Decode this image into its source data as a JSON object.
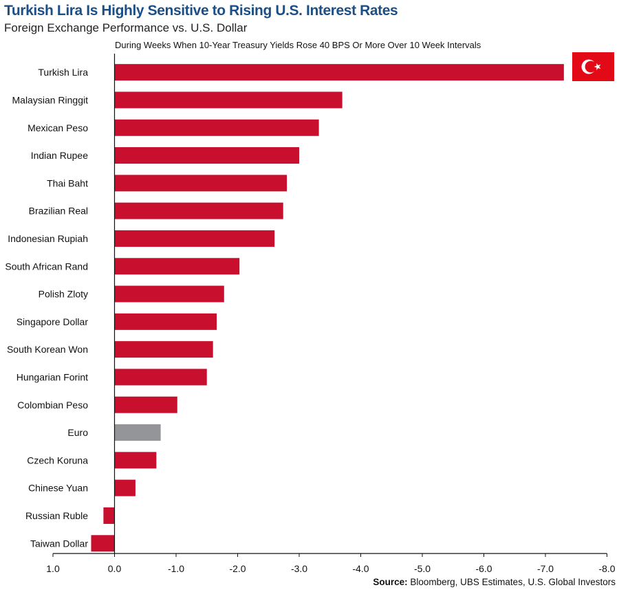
{
  "title": "Turkish Lira Is Highly Sensitive to Rising U.S. Interest Rates",
  "subtitle": "Foreign Exchange Performance vs. U.S. Dollar",
  "note": "During Weeks When 10-Year Treasury Yields Rose 40 BPS Or More Over 10 Week Intervals",
  "source_label": "Source:",
  "source_text": " Bloomberg, UBS Estimates, U.S. Global Investors",
  "flag_icon": "turkey-flag-icon",
  "colors": {
    "bar": "#c8102e",
    "highlight": "#939598",
    "flag": "#e30a17"
  },
  "chart_data": {
    "type": "bar",
    "orientation": "horizontal",
    "categories": [
      "Turkish Lira",
      "Malaysian Ringgit",
      "Mexican Peso",
      "Indian Rupee",
      "Thai Baht",
      "Brazilian Real",
      "Indonesian Rupiah",
      "South African Rand",
      "Polish Zloty",
      "Singapore Dollar",
      "South Korean Won",
      "Hungarian Forint",
      "Colombian Peso",
      "Euro",
      "Czech Koruna",
      "Chinese Yuan",
      "Russian Ruble",
      "Taiwan Dollar"
    ],
    "values": [
      -7.3,
      -3.7,
      -3.32,
      -3.0,
      -2.8,
      -2.74,
      -2.6,
      -2.03,
      -1.78,
      -1.66,
      -1.6,
      -1.5,
      -1.02,
      -0.75,
      -0.68,
      -0.34,
      0.18,
      0.38
    ],
    "highlight": [
      "Euro"
    ],
    "xlim": [
      1.0,
      -8.0
    ],
    "xticks": [
      "1.0",
      "0.0",
      "-1.0",
      "-2.0",
      "-3.0",
      "-4.0",
      "-5.0",
      "-6.0",
      "-7.0",
      "-8.0"
    ],
    "xtick_values": [
      1,
      0,
      -1,
      -2,
      -3,
      -4,
      -5,
      -6,
      -7,
      -8
    ],
    "grid": false,
    "legend": "none"
  }
}
